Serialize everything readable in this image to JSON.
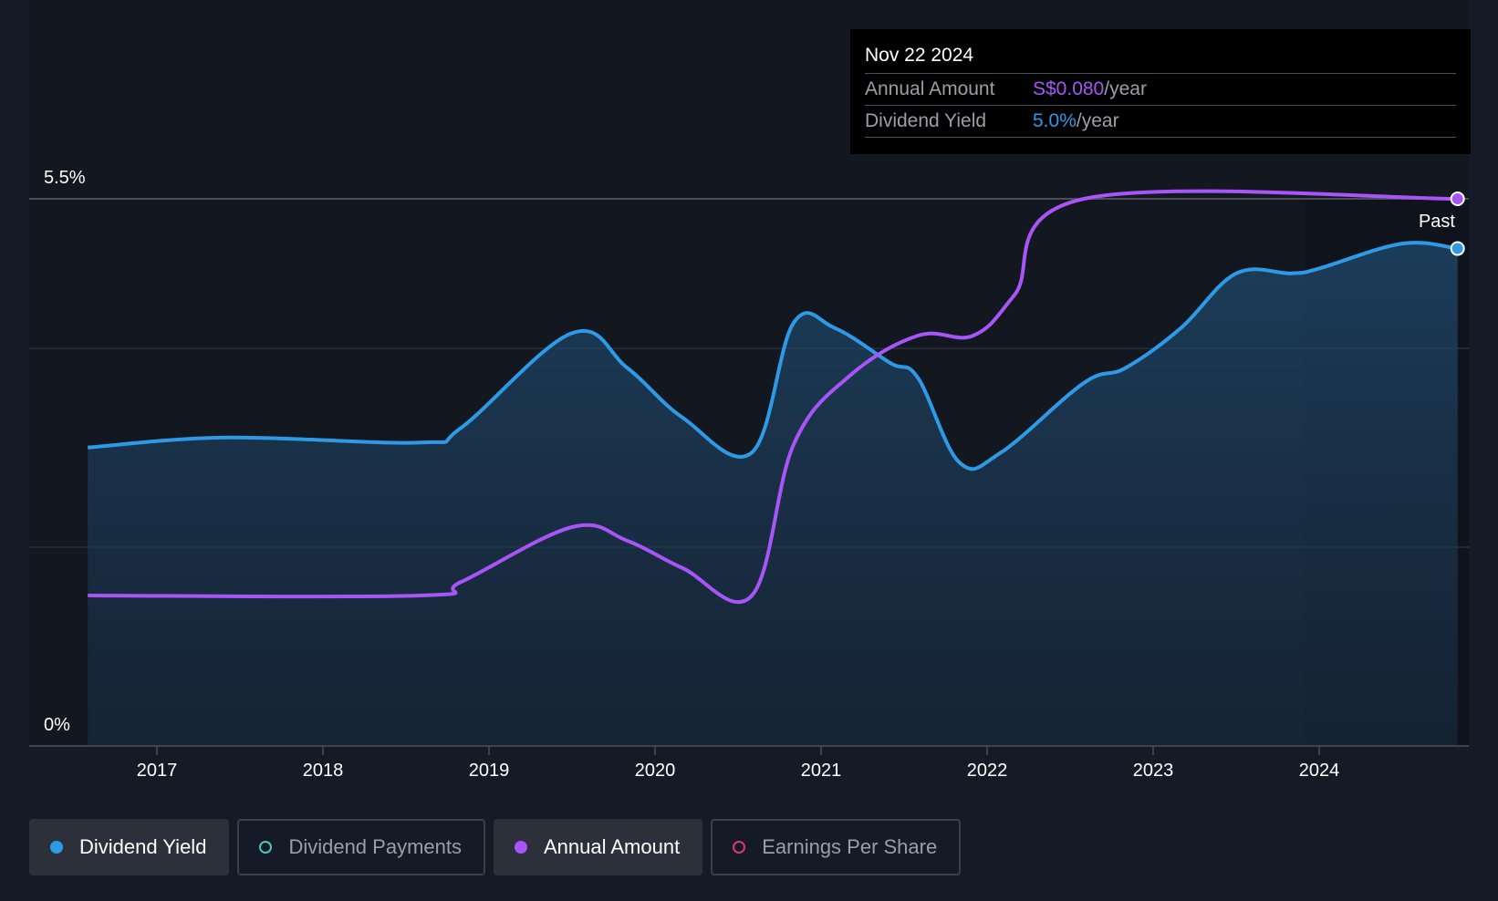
{
  "chart_data": {
    "type": "area",
    "y_axis": {
      "ticks": [
        "0%",
        "5.5%"
      ],
      "ylim": [
        0,
        5.5
      ]
    },
    "x_axis": {
      "ticks": [
        "2017",
        "2018",
        "2019",
        "2020",
        "2021",
        "2022",
        "2023",
        "2024"
      ]
    },
    "forecast_boundary_label": "Past",
    "series": [
      {
        "name": "Dividend Yield",
        "color": "#2e9ae6",
        "unit": "%",
        "points": [
          [
            "2016-08",
            3.0
          ],
          [
            "2017-06",
            3.1
          ],
          [
            "2018-08",
            3.05
          ],
          [
            "2018-11",
            3.2
          ],
          [
            "2019-07",
            4.15
          ],
          [
            "2019-11",
            3.8
          ],
          [
            "2020-03",
            3.3
          ],
          [
            "2020-08",
            2.95
          ],
          [
            "2020-11",
            4.25
          ],
          [
            "2021-02",
            4.2
          ],
          [
            "2021-06",
            3.85
          ],
          [
            "2021-08",
            3.7
          ],
          [
            "2021-11",
            2.85
          ],
          [
            "2022-02",
            2.95
          ],
          [
            "2022-08",
            3.65
          ],
          [
            "2022-11",
            3.8
          ],
          [
            "2023-03",
            4.2
          ],
          [
            "2023-07",
            4.75
          ],
          [
            "2023-11",
            4.75
          ],
          [
            "2024-01",
            4.8
          ],
          [
            "2024-07",
            5.05
          ],
          [
            "2024-11",
            5.0
          ]
        ]
      },
      {
        "name": "Annual Amount",
        "color": "#a855f7",
        "unit": "S$/year",
        "points": [
          [
            "2016-08",
            0.022
          ],
          [
            "2018-08",
            0.022
          ],
          [
            "2018-11",
            0.024
          ],
          [
            "2019-07",
            0.032
          ],
          [
            "2019-11",
            0.03
          ],
          [
            "2020-03",
            0.026
          ],
          [
            "2020-08",
            0.022
          ],
          [
            "2020-11",
            0.044
          ],
          [
            "2021-03",
            0.054
          ],
          [
            "2021-08",
            0.06
          ],
          [
            "2021-12",
            0.06
          ],
          [
            "2022-03",
            0.066
          ],
          [
            "2022-08",
            0.08
          ],
          [
            "2024-11",
            0.08
          ]
        ]
      }
    ]
  },
  "tooltip": {
    "date": "Nov 22 2024",
    "rows": [
      {
        "label": "Annual Amount",
        "value": "S$0.080",
        "unit": "/year"
      },
      {
        "label": "Dividend Yield",
        "value": "5.0%",
        "unit": "/year"
      }
    ]
  },
  "legend": [
    {
      "label": "Dividend Yield",
      "color": "#2e9ae6",
      "active": true
    },
    {
      "label": "Dividend Payments",
      "color": "#4fc4b5",
      "active": false
    },
    {
      "label": "Annual Amount",
      "color": "#a855f7",
      "active": true
    },
    {
      "label": "Earnings Per Share",
      "color": "#d63a6f",
      "active": false
    }
  ]
}
